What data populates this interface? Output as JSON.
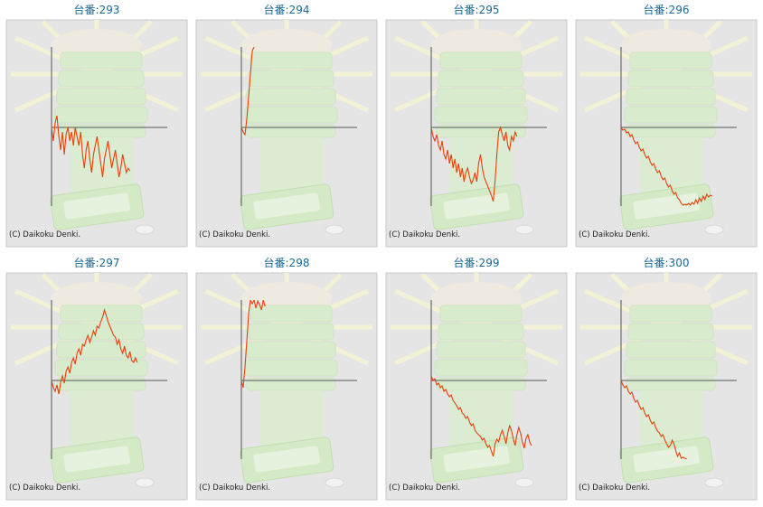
{
  "chart_data": [
    {
      "type": "line",
      "title": "台番:293",
      "footer": "(C) Daikoku Denki.",
      "color": "#e8400c",
      "xlim": [
        0,
        60
      ],
      "ylim": [
        -87,
        89
      ],
      "values": [
        0,
        -15,
        5,
        13,
        -10,
        -25,
        -5,
        -30,
        -8,
        0,
        -15,
        -5,
        -20,
        0,
        -10,
        -20,
        -5,
        -30,
        -45,
        -25,
        -15,
        -35,
        -50,
        -30,
        -20,
        -10,
        -25,
        -40,
        -55,
        -35,
        -25,
        -15,
        -30,
        -45,
        -35,
        -25,
        -40,
        -55,
        -45,
        -30,
        -40,
        -50,
        -45,
        -48
      ]
    },
    {
      "type": "line",
      "title": "台番:294",
      "footer": "(C) Daikoku Denki.",
      "color": "#e8400c",
      "xlim": [
        0,
        60
      ],
      "ylim": [
        -87,
        89
      ],
      "values": [
        0,
        -5,
        -8,
        10,
        35,
        60,
        85,
        89
      ]
    },
    {
      "type": "line",
      "title": "台番:295",
      "footer": "(C) Daikoku Denki.",
      "color": "#e8400c",
      "xlim": [
        0,
        60
      ],
      "ylim": [
        -87,
        89
      ],
      "values": [
        0,
        -10,
        -15,
        -8,
        -20,
        -25,
        -15,
        -30,
        -35,
        -25,
        -40,
        -30,
        -45,
        -35,
        -50,
        -40,
        -55,
        -45,
        -60,
        -50,
        -45,
        -55,
        -62,
        -58,
        -50,
        -60,
        -40,
        -30,
        -45,
        -55,
        -60,
        -65,
        -70,
        -75,
        -82,
        -60,
        -30,
        -5,
        0,
        -8,
        -15,
        -5,
        -20,
        -25,
        -10,
        -15,
        -5,
        -10
      ]
    },
    {
      "type": "line",
      "title": "台番:296",
      "footer": "(C) Daikoku Denki.",
      "color": "#e8400c",
      "xlim": [
        0,
        60
      ],
      "ylim": [
        -87,
        89
      ],
      "values": [
        0,
        -3,
        -2,
        -6,
        -5,
        -10,
        -8,
        -14,
        -18,
        -16,
        -22,
        -26,
        -24,
        -30,
        -34,
        -32,
        -38,
        -42,
        -40,
        -46,
        -50,
        -48,
        -54,
        -58,
        -56,
        -62,
        -66,
        -64,
        -70,
        -74,
        -72,
        -78,
        -80,
        -84,
        -86,
        -85,
        -86,
        -84,
        -86,
        -83,
        -85,
        -80,
        -84,
        -78,
        -82,
        -76,
        -80,
        -74,
        -77,
        -75,
        -76
      ]
    },
    {
      "type": "line",
      "title": "台番:297",
      "footer": "(C) Daikoku Denki.",
      "color": "#e8400c",
      "xlim": [
        0,
        60
      ],
      "ylim": [
        -87,
        89
      ],
      "values": [
        0,
        -8,
        -12,
        -5,
        -15,
        -2,
        5,
        -3,
        10,
        15,
        8,
        20,
        25,
        18,
        30,
        35,
        28,
        40,
        38,
        45,
        50,
        42,
        48,
        55,
        50,
        60,
        58,
        65,
        70,
        78,
        72,
        65,
        60,
        55,
        50,
        48,
        40,
        45,
        35,
        30,
        38,
        28,
        25,
        32,
        22,
        20,
        25,
        20
      ]
    },
    {
      "type": "line",
      "title": "台番:298",
      "footer": "(C) Daikoku Denki.",
      "color": "#e8400c",
      "xlim": [
        0,
        60
      ],
      "ylim": [
        -87,
        89
      ],
      "values": [
        0,
        -8,
        15,
        45,
        75,
        89,
        85,
        89,
        80,
        88,
        84,
        78,
        89,
        82
      ]
    },
    {
      "type": "line",
      "title": "台番:299",
      "footer": "(C) Daikoku Denki.",
      "color": "#e8400c",
      "xlim": [
        0,
        60
      ],
      "ylim": [
        -87,
        89
      ],
      "values": [
        5,
        0,
        2,
        -5,
        -3,
        -8,
        -6,
        -12,
        -10,
        -15,
        -18,
        -16,
        -22,
        -25,
        -28,
        -32,
        -30,
        -36,
        -38,
        -42,
        -40,
        -46,
        -50,
        -48,
        -55,
        -58,
        -60,
        -62,
        -66,
        -64,
        -70,
        -74,
        -72,
        -78,
        -84,
        -70,
        -65,
        -68,
        -60,
        -55,
        -62,
        -70,
        -58,
        -50,
        -55,
        -65,
        -72,
        -60,
        -52,
        -58,
        -68,
        -75,
        -64,
        -60,
        -68,
        -72
      ]
    },
    {
      "type": "line",
      "title": "台番:300",
      "footer": "(C) Daikoku Denki.",
      "color": "#e8400c",
      "xlim": [
        0,
        60
      ],
      "ylim": [
        -87,
        89
      ],
      "values": [
        0,
        -5,
        -8,
        -6,
        -12,
        -15,
        -13,
        -20,
        -24,
        -22,
        -28,
        -32,
        -30,
        -36,
        -40,
        -38,
        -44,
        -48,
        -46,
        -52,
        -56,
        -58,
        -62,
        -60,
        -66,
        -70,
        -74,
        -72,
        -66,
        -70,
        -78,
        -84,
        -80,
        -86,
        -85,
        -86,
        -87
      ]
    }
  ]
}
